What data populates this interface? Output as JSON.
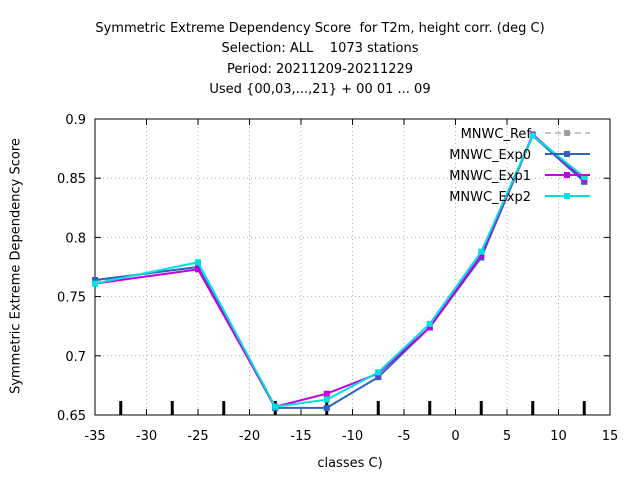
{
  "chart_data": {
    "type": "line",
    "title_lines": [
      "Symmetric Extreme Dependency Score  for T2m, height corr. (deg C)",
      "Selection: ALL    1073 stations",
      "Period: 20211209-20211229",
      "Used {00,03,...,21} + 00 01 ... 09"
    ],
    "xlabel": "classes C)",
    "ylabel": "Symmetric Extreme Dependency Score",
    "xlim": [
      -35,
      15
    ],
    "ylim": [
      0.65,
      0.9
    ],
    "xticks": [
      "-35",
      "-30",
      "-25",
      "-20",
      "-15",
      "-10",
      "-5",
      "0",
      "5",
      "10",
      "15"
    ],
    "yticks": [
      "0.65",
      "0.7",
      "0.75",
      "0.8",
      "0.85",
      "0.9"
    ],
    "grid": true,
    "legend_position": "top-right",
    "x": [
      -35,
      -25,
      -17.5,
      -12.5,
      -7.5,
      -2.5,
      2.5,
      7.5,
      12.5
    ],
    "series": [
      {
        "name": "MNWC_Ref",
        "color": "#a0a0a0",
        "dashed": true,
        "values": [
          0.763,
          0.775,
          0.656,
          0.656,
          0.682,
          0.724,
          0.783,
          0.886,
          0.847
        ]
      },
      {
        "name": "MNWC_Exp0",
        "color": "#3060c0",
        "dashed": false,
        "values": [
          0.764,
          0.775,
          0.656,
          0.656,
          0.682,
          0.724,
          0.783,
          0.886,
          0.847
        ]
      },
      {
        "name": "MNWC_Exp1",
        "color": "#c000e0",
        "dashed": false,
        "values": [
          0.761,
          0.773,
          0.657,
          0.668,
          0.685,
          0.724,
          0.785,
          0.887,
          0.849
        ]
      },
      {
        "name": "MNWC_Exp2",
        "color": "#00e0e0",
        "dashed": false,
        "values": [
          0.761,
          0.779,
          0.657,
          0.663,
          0.686,
          0.727,
          0.788,
          0.886,
          0.851
        ]
      }
    ],
    "class_markers_x": [
      -32.5,
      -27.5,
      -22.5,
      -17.5,
      -12.5,
      -7.5,
      -2.5,
      2.5,
      7.5,
      12.5
    ]
  }
}
